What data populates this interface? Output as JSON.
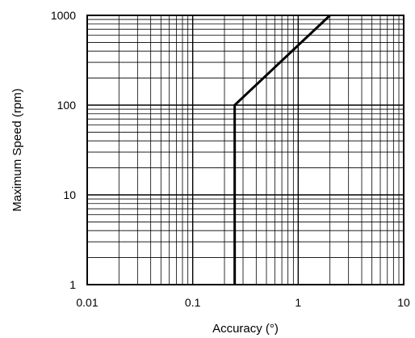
{
  "chart_data": {
    "type": "line",
    "title": "",
    "xlabel": "Accuracy (°)",
    "ylabel": "Maximum Speed (rpm)",
    "x_scale": "log",
    "y_scale": "log",
    "xlim": [
      0.01,
      10
    ],
    "ylim": [
      1,
      1000
    ],
    "x_ticks": [
      0.01,
      0.1,
      1,
      10
    ],
    "x_tick_labels": [
      "0.01",
      "0.1",
      "1",
      "10"
    ],
    "y_ticks": [
      1,
      10,
      100,
      1000
    ],
    "y_tick_labels": [
      "1",
      "10",
      "100",
      "1000"
    ],
    "grid": true,
    "legend": "none",
    "series": [
      {
        "x": [
          0.25,
          0.25,
          2
        ],
        "y": [
          1,
          100,
          1000
        ],
        "color": "#000000"
      }
    ]
  }
}
